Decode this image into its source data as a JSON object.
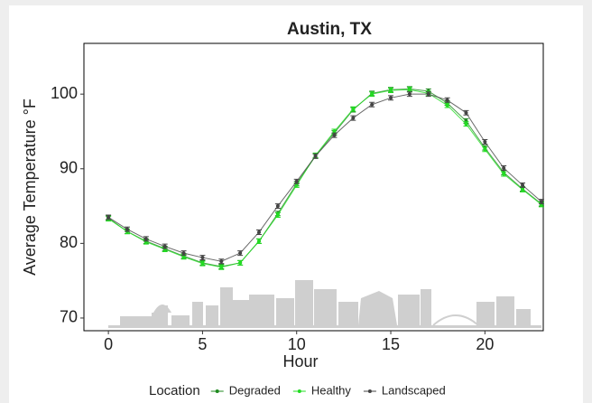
{
  "chart_data": {
    "type": "line",
    "title": "Austin, TX",
    "xlabel": "Hour",
    "ylabel": "Average Temperature °F",
    "legend_title": "Location",
    "legend": "bottom",
    "x": [
      0,
      1,
      2,
      3,
      4,
      5,
      6,
      7,
      8,
      9,
      10,
      11,
      12,
      13,
      14,
      15,
      16,
      17,
      18,
      19,
      20,
      21,
      22,
      23
    ],
    "series": [
      {
        "name": "Degraded",
        "color": "#1f8a1f",
        "values": [
          83.4,
          81.6,
          80.3,
          79.3,
          78.3,
          77.4,
          76.9,
          77.4,
          80.3,
          84.0,
          88.0,
          91.7,
          94.8,
          97.9,
          100.1,
          100.6,
          100.7,
          100.4,
          98.8,
          96.4,
          92.8,
          89.5,
          87.3,
          85.3
        ],
        "errors": [
          0.3,
          0.3,
          0.3,
          0.3,
          0.3,
          0.3,
          0.3,
          0.3,
          0.3,
          0.3,
          0.3,
          0.3,
          0.3,
          0.3,
          0.3,
          0.3,
          0.3,
          0.3,
          0.3,
          0.3,
          0.3,
          0.3,
          0.3,
          0.3
        ]
      },
      {
        "name": "Healthy",
        "color": "#22dd22",
        "values": [
          83.3,
          81.6,
          80.2,
          79.2,
          78.2,
          77.3,
          76.8,
          77.4,
          80.3,
          83.8,
          87.8,
          91.8,
          95.0,
          98.0,
          100.0,
          100.5,
          100.6,
          100.1,
          98.5,
          96.0,
          92.6,
          89.3,
          87.2,
          85.2
        ],
        "errors": [
          0.3,
          0.3,
          0.3,
          0.3,
          0.3,
          0.3,
          0.3,
          0.3,
          0.3,
          0.3,
          0.3,
          0.3,
          0.3,
          0.3,
          0.3,
          0.3,
          0.3,
          0.3,
          0.3,
          0.3,
          0.3,
          0.3,
          0.3,
          0.3
        ]
      },
      {
        "name": "Landscaped",
        "color": "#444444",
        "values": [
          83.5,
          81.9,
          80.6,
          79.6,
          78.7,
          78.1,
          77.6,
          78.7,
          81.5,
          85.0,
          88.3,
          91.7,
          94.5,
          96.8,
          98.6,
          99.5,
          100.0,
          100.0,
          99.2,
          97.5,
          93.6,
          90.1,
          87.8,
          85.6
        ],
        "errors": [
          0.3,
          0.3,
          0.3,
          0.3,
          0.3,
          0.3,
          0.3,
          0.3,
          0.3,
          0.3,
          0.3,
          0.3,
          0.3,
          0.3,
          0.3,
          0.3,
          0.3,
          0.3,
          0.3,
          0.3,
          0.3,
          0.3,
          0.3,
          0.3
        ]
      }
    ],
    "xlim": [
      -1.3,
      23.1
    ],
    "ylim": [
      68.3,
      106.8
    ],
    "xticks": [
      0,
      5,
      10,
      15,
      20
    ],
    "yticks": [
      70,
      80,
      90,
      100
    ],
    "grid": false
  }
}
